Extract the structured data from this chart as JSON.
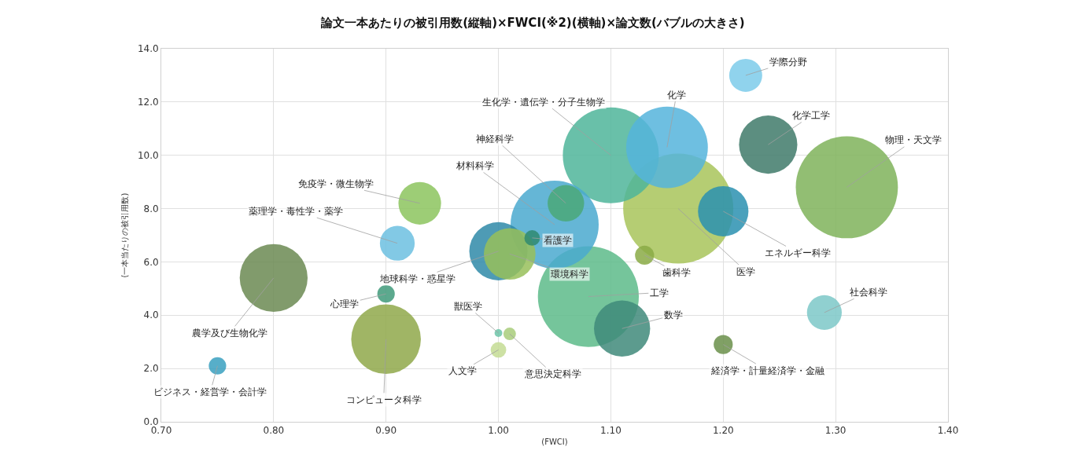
{
  "chart_data": {
    "type": "bubble",
    "title": "論文一本あたりの被引用数(縦軸)×FWCI(※2)(横軸)×論文数(バブルの大きさ)",
    "xlabel": "(FWCI)",
    "ylabel": "(一本当たりの被引用数)",
    "relative": false,
    "xlim": [
      0.7,
      1.4
    ],
    "xticks": [
      {
        "value": 0.7,
        "label": "0.70"
      },
      {
        "value": 0.8,
        "label": "0.80"
      },
      {
        "value": 0.9,
        "label": "0.90"
      },
      {
        "value": 1.0,
        "label": "1.00"
      },
      {
        "value": 1.1,
        "label": "1.10"
      },
      {
        "value": 1.2,
        "label": "1.20"
      },
      {
        "value": 1.3,
        "label": "1.30"
      },
      {
        "value": 1.4,
        "label": "1.40"
      }
    ],
    "ylim": [
      0,
      14
    ],
    "yticks": [
      {
        "value": 0,
        "label": "0.0"
      },
      {
        "value": 2,
        "label": "2.0"
      },
      {
        "value": 4,
        "label": "4.0"
      },
      {
        "value": 6,
        "label": "6.0"
      },
      {
        "value": 8,
        "label": "8.0"
      },
      {
        "value": 10,
        "label": "10.0"
      },
      {
        "value": 12,
        "label": "12.0"
      },
      {
        "value": 14,
        "label": "14.0"
      }
    ],
    "grid": true,
    "legend": false,
    "series": [
      {
        "name": "医学",
        "color": "#a8c45a",
        "x": [
          1.16
        ],
        "values": [
          8.0
        ],
        "sizes": [
          1
        ]
      },
      {
        "name": "工学",
        "color": "#5dbb8a",
        "x": [
          1.08
        ],
        "values": [
          4.7
        ],
        "sizes": [
          0.84
        ]
      },
      {
        "name": "物理・天文学",
        "color": "#7fb35a",
        "x": [
          1.31
        ],
        "values": [
          8.8
        ],
        "sizes": [
          0.86
        ]
      },
      {
        "name": "生化学・遺伝学・分子生物学",
        "color": "#4fb59a",
        "x": [
          1.1
        ],
        "values": [
          10.0
        ],
        "sizes": [
          0.76
        ]
      },
      {
        "name": "材料科学",
        "color": "#4aa9cf",
        "x": [
          1.05
        ],
        "values": [
          7.4
        ],
        "sizes": [
          0.64
        ]
      },
      {
        "name": "化学",
        "color": "#55b4dc",
        "x": [
          1.15
        ],
        "values": [
          10.3
        ],
        "sizes": [
          0.55
        ]
      },
      {
        "name": "農学及び生物化学",
        "color": "#6b8a52",
        "x": [
          0.8
        ],
        "values": [
          5.4
        ],
        "sizes": [
          0.38
        ]
      },
      {
        "name": "コンピュータ科学",
        "color": "#8fa84a",
        "x": [
          0.9
        ],
        "values": [
          3.1
        ],
        "sizes": [
          0.4
        ]
      },
      {
        "name": "化学工学",
        "color": "#3f7a6a",
        "x": [
          1.24
        ],
        "values": [
          10.4
        ],
        "sizes": [
          0.28
        ]
      },
      {
        "name": "地球科学・惑星学",
        "color": "#2f8aa8",
        "x": [
          1.0
        ],
        "values": [
          6.4
        ],
        "sizes": [
          0.28
        ]
      },
      {
        "name": "環境科学",
        "color": "#98c05a",
        "x": [
          1.01
        ],
        "values": [
          6.3
        ],
        "sizes": [
          0.22
        ]
      },
      {
        "name": "数学",
        "color": "#3f8a7a",
        "x": [
          1.11
        ],
        "values": [
          3.5
        ],
        "sizes": [
          0.26
        ]
      },
      {
        "name": "エネルギー科学",
        "color": "#2a90b0",
        "x": [
          1.2
        ],
        "values": [
          7.9
        ],
        "sizes": [
          0.21
        ]
      },
      {
        "name": "免疫学・微生物学",
        "color": "#8cc45e",
        "x": [
          0.93
        ],
        "values": [
          8.2
        ],
        "sizes": [
          0.15
        ]
      },
      {
        "name": "神経科学",
        "color": "#4aa878",
        "x": [
          1.06
        ],
        "values": [
          8.2
        ],
        "sizes": [
          0.11
        ]
      },
      {
        "name": "薬理学・毒性学・薬学",
        "color": "#6cc0e0",
        "x": [
          0.91
        ],
        "values": [
          6.7
        ],
        "sizes": [
          0.1
        ]
      },
      {
        "name": "社会科学",
        "color": "#7cc8c8",
        "x": [
          1.29
        ],
        "values": [
          4.1
        ],
        "sizes": [
          0.1
        ]
      },
      {
        "name": "学際分野",
        "color": "#7ccbea",
        "x": [
          1.22
        ],
        "values": [
          13.0
        ],
        "sizes": [
          0.09
        ]
      },
      {
        "name": "歯科学",
        "color": "#8aaa45",
        "x": [
          1.13
        ],
        "values": [
          6.25
        ],
        "sizes": [
          0.03
        ]
      },
      {
        "name": "経済学・計量経済学・金融",
        "color": "#6a8f4a",
        "x": [
          1.2
        ],
        "values": [
          2.9
        ],
        "sizes": [
          0.03
        ]
      },
      {
        "name": "心理学",
        "color": "#3f9a7a",
        "x": [
          0.9
        ],
        "values": [
          4.8
        ],
        "sizes": [
          0.025
        ]
      },
      {
        "name": "ビジネス・経営学・会計学",
        "color": "#3aa0c0",
        "x": [
          0.75
        ],
        "values": [
          2.1
        ],
        "sizes": [
          0.025
        ]
      },
      {
        "name": "看護学",
        "color": "#2f8a70",
        "x": [
          1.03
        ],
        "values": [
          6.9
        ],
        "sizes": [
          0.02
        ]
      },
      {
        "name": "人文学",
        "color": "#c4dc94",
        "x": [
          1.0
        ],
        "values": [
          2.7
        ],
        "sizes": [
          0.02
        ]
      },
      {
        "name": "意思決定科学",
        "color": "#a8cc7a",
        "x": [
          1.01
        ],
        "values": [
          3.3
        ],
        "sizes": [
          0.013
        ]
      },
      {
        "name": "獣医学",
        "color": "#6cc4a8",
        "x": [
          1.0
        ],
        "values": [
          3.33
        ],
        "sizes": [
          0.005
        ]
      }
    ]
  }
}
